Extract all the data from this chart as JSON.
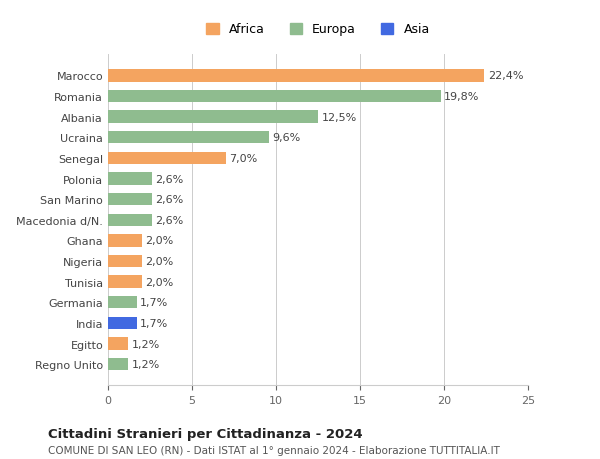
{
  "categories": [
    "Regno Unito",
    "Egitto",
    "India",
    "Germania",
    "Tunisia",
    "Nigeria",
    "Ghana",
    "Macedonia d/N.",
    "San Marino",
    "Polonia",
    "Senegal",
    "Ucraina",
    "Albania",
    "Romania",
    "Marocco"
  ],
  "values": [
    1.2,
    1.2,
    1.7,
    1.7,
    2.0,
    2.0,
    2.0,
    2.6,
    2.6,
    2.6,
    7.0,
    9.6,
    12.5,
    19.8,
    22.4
  ],
  "labels": [
    "1,2%",
    "1,2%",
    "1,7%",
    "1,7%",
    "2,0%",
    "2,0%",
    "2,0%",
    "2,6%",
    "2,6%",
    "2,6%",
    "7,0%",
    "9,6%",
    "12,5%",
    "19,8%",
    "22,4%"
  ],
  "continents": [
    "Europa",
    "Africa",
    "Asia",
    "Europa",
    "Africa",
    "Africa",
    "Africa",
    "Europa",
    "Europa",
    "Europa",
    "Africa",
    "Europa",
    "Europa",
    "Europa",
    "Africa"
  ],
  "colors": {
    "Africa": "#F4A460",
    "Europa": "#8FBC8F",
    "Asia": "#4169E1"
  },
  "africa_color": "#F4A460",
  "europa_color": "#8FBC8F",
  "asia_color": "#4169E1",
  "title": "Cittadini Stranieri per Cittadinanza - 2024",
  "subtitle": "COMUNE DI SAN LEO (RN) - Dati ISTAT al 1° gennaio 2024 - Elaborazione TUTTITALIA.IT",
  "xlim": [
    0,
    25
  ],
  "xticks": [
    0,
    5,
    10,
    15,
    20,
    25
  ],
  "background_color": "#ffffff",
  "grid_color": "#cccccc"
}
